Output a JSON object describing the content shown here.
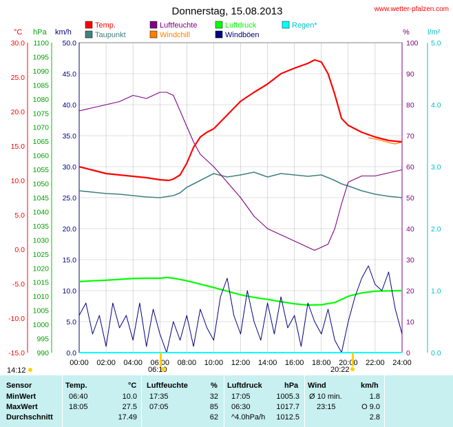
{
  "title": "Donnerstag, 15.08.2013",
  "site": "www.wetter-pfalzen.com",
  "axis_units": {
    "c": "°C",
    "hpa": "hPa",
    "kmh": "km/h",
    "pct": "%",
    "lm2": "l/m²"
  },
  "legend": [
    {
      "label": "Temp.",
      "color": "#ff0000"
    },
    {
      "label": "Taupunkt",
      "color": "#408080"
    },
    {
      "label": "Luftfeuchte",
      "color": "#800080"
    },
    {
      "label": "Windchill",
      "color": "#ff8000"
    },
    {
      "label": "Luftdruck",
      "color": "#00ff00"
    },
    {
      "label": "Windböen",
      "color": "#000080"
    },
    {
      "label": "Regen*",
      "color": "#00ffff"
    }
  ],
  "sun": {
    "sunrise_label": "06:10",
    "sunset_label": "20:22",
    "left_label": "14:12"
  },
  "chart_data": {
    "type": "line",
    "title": "Donnerstag, 15.08.2013",
    "x_unit": "hours",
    "x_ticks": [
      "00:00",
      "02:00",
      "04:00",
      "06:00",
      "08:00",
      "10:00",
      "12:00",
      "14:00",
      "16:00",
      "18:00",
      "20:00",
      "22:00",
      "24:00"
    ],
    "xlim": [
      0,
      24
    ],
    "axes": {
      "temp_c": {
        "ylim": [
          -15,
          30
        ],
        "ticks": [
          "30.0",
          "25.0",
          "20.0",
          "15.0",
          "10.0",
          "5.0",
          "0.0",
          "-5.0",
          "-10.0",
          "-15.0"
        ]
      },
      "pressure_hpa": {
        "ylim": [
          990,
          1100
        ],
        "ticks": [
          "1100",
          "1095",
          "1090",
          "1085",
          "1080",
          "1075",
          "1070",
          "1065",
          "1060",
          "1055",
          "1050",
          "1045",
          "1040",
          "1035",
          "1030",
          "1025",
          "1020",
          "1015",
          "1010",
          "1005",
          "1000",
          "995",
          "990"
        ]
      },
      "wind_kmh": {
        "ylim": [
          0,
          50
        ],
        "ticks": [
          "50.0",
          "45.0",
          "40.0",
          "35.0",
          "30.0",
          "25.0",
          "20.0",
          "15.0",
          "10.0",
          "5.0",
          "0.0"
        ]
      },
      "humidity_pct": {
        "ylim": [
          0,
          100
        ],
        "ticks": [
          "100",
          "90",
          "80",
          "70",
          "60",
          "50",
          "40",
          "30",
          "20",
          "10",
          "0"
        ]
      },
      "rain_lm2": {
        "ylim": [
          0,
          5
        ],
        "ticks": [
          "5.0",
          "4.0",
          "3.0",
          "2.0",
          "1.0",
          "0.0"
        ]
      }
    },
    "series": [
      {
        "name": "Temp.",
        "axis": "temp_c",
        "color": "#ff0000",
        "x": [
          0,
          1,
          2,
          3,
          4,
          5,
          6,
          6.67,
          7,
          7.5,
          8,
          8.5,
          9,
          9.5,
          10,
          11,
          12,
          13,
          14,
          15,
          16,
          17,
          17.5,
          18,
          18.5,
          19,
          19.5,
          20,
          20.5,
          21,
          22,
          23,
          24
        ],
        "y": [
          12.0,
          11.5,
          11.0,
          10.8,
          10.6,
          10.4,
          10.1,
          10.0,
          10.2,
          10.8,
          12.5,
          14.8,
          16.3,
          17.0,
          17.5,
          19.5,
          21.5,
          22.8,
          24.0,
          25.5,
          26.3,
          27.0,
          27.5,
          27.2,
          25.5,
          22.5,
          19.0,
          18.0,
          17.5,
          17.0,
          16.3,
          15.8,
          15.6
        ]
      },
      {
        "name": "Taupunkt",
        "axis": "temp_c",
        "color": "#408080",
        "x": [
          0,
          1,
          2,
          3,
          4,
          5,
          6,
          7,
          7.5,
          8,
          9,
          10,
          11,
          12,
          13,
          14,
          15,
          16,
          17,
          18,
          19,
          19.5,
          20,
          21,
          22,
          23,
          24
        ],
        "y": [
          8.5,
          8.3,
          8.1,
          8.0,
          7.8,
          7.6,
          7.5,
          7.8,
          8.2,
          9.0,
          10.0,
          11.0,
          10.5,
          10.8,
          11.2,
          10.5,
          11.0,
          10.8,
          10.6,
          10.8,
          10.0,
          9.5,
          9.2,
          8.5,
          8.0,
          7.7,
          7.5
        ]
      },
      {
        "name": "Luftfeuchte",
        "axis": "humidity_pct",
        "color": "#800080",
        "x": [
          0,
          1,
          2,
          3,
          4,
          5,
          6,
          6.5,
          7,
          7.5,
          8,
          8.5,
          9,
          9.5,
          10,
          11,
          12,
          13,
          14,
          15,
          16,
          17,
          17.5,
          18,
          18.5,
          19,
          19.5,
          20,
          20.5,
          21,
          22,
          23,
          24
        ],
        "y": [
          78,
          79,
          80,
          81,
          83,
          82,
          84,
          84,
          83,
          78,
          73,
          68,
          64,
          62,
          60,
          55,
          50,
          44,
          40,
          38,
          36,
          34,
          33,
          34,
          35,
          40,
          48,
          55,
          56,
          57,
          57,
          58,
          59
        ]
      },
      {
        "name": "Windchill",
        "axis": "temp_c",
        "color": "#ff8000",
        "x": [
          21.5,
          22,
          22.5,
          23,
          23.5,
          24
        ],
        "y": [
          16.2,
          16.0,
          15.8,
          15.5,
          15.3,
          15.6
        ]
      },
      {
        "name": "Luftdruck",
        "axis": "pressure_hpa",
        "color": "#00ff00",
        "x": [
          0,
          1,
          2,
          3,
          4,
          5,
          6,
          6.5,
          7,
          8,
          9,
          10,
          11,
          12,
          13,
          14,
          15,
          16,
          17,
          18,
          19,
          20,
          21,
          22,
          23,
          24
        ],
        "y": [
          1015.2,
          1015.5,
          1015.7,
          1016.0,
          1016.3,
          1016.4,
          1016.4,
          1016.7,
          1016.4,
          1015.5,
          1014.3,
          1013.1,
          1011.8,
          1010.5,
          1009.6,
          1008.9,
          1008.1,
          1007.3,
          1006.9,
          1007.0,
          1007.8,
          1010.0,
          1011.2,
          1011.8,
          1011.9,
          1012.0
        ]
      },
      {
        "name": "Windböen",
        "axis": "wind_kmh",
        "color": "#000080",
        "x": [
          0,
          0.5,
          1,
          1.5,
          2,
          2.5,
          3,
          3.5,
          4,
          4.5,
          5,
          5.5,
          6,
          6.5,
          7,
          7.5,
          8,
          8.5,
          9,
          9.5,
          10,
          10.5,
          11,
          11.5,
          12,
          12.5,
          13,
          13.5,
          14,
          14.5,
          15,
          15.5,
          16,
          16.5,
          17,
          17.5,
          18,
          18.5,
          19,
          19.5,
          20,
          20.5,
          21,
          21.5,
          22,
          22.5,
          23,
          23.5,
          24
        ],
        "y": [
          6,
          8,
          3,
          6,
          1,
          8,
          4,
          6,
          2,
          8,
          1,
          7,
          3,
          0,
          5,
          2,
          6,
          1,
          7,
          4,
          2,
          9,
          12,
          6,
          3,
          10,
          5,
          2,
          8,
          3,
          9,
          4,
          6,
          1,
          8,
          5,
          3,
          7,
          2,
          0,
          5,
          9,
          12,
          14,
          11,
          10,
          13,
          7,
          3
        ]
      },
      {
        "name": "Regen*",
        "axis": "rain_lm2",
        "color": "#00ffff",
        "x": [
          0,
          24
        ],
        "y": [
          0,
          0
        ]
      }
    ]
  },
  "stats": {
    "headers": {
      "sensor": "Sensor",
      "temp": "Temp.",
      "temp_unit": "°C",
      "hum": "Luftfeuchte",
      "hum_unit": "%",
      "press": "Luftdruck",
      "press_unit": "hPa",
      "wind": "Wind",
      "wind_unit": "km/h"
    },
    "rows": [
      {
        "label": "MinWert",
        "temp_time": "06:40",
        "temp_val": "10.0",
        "hum_time": "17:35",
        "hum_val": "32",
        "press_time": "17:05",
        "press_val": "1005.3",
        "wind_text": "Ø 10 min.",
        "wind_val": "1.8"
      },
      {
        "label": "MaxWert",
        "temp_time": "18:05",
        "temp_val": "27.5",
        "hum_time": "07:05",
        "hum_val": "85",
        "press_time": "06:30",
        "press_val": "1017.7",
        "wind_text": "23:15",
        "wind_val": "O 9.0"
      },
      {
        "label": "Durchschnitt",
        "temp_time": "",
        "temp_val": "17.49",
        "hum_time": "",
        "hum_val": "62",
        "press_time": "^4.0hPa/h",
        "press_val": "1012.5",
        "wind_text": "",
        "wind_val": "2.8"
      }
    ]
  }
}
